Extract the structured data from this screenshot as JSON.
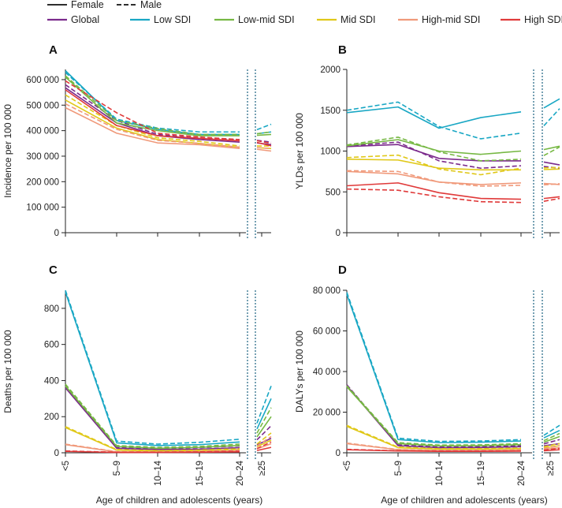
{
  "legend": {
    "sex": [
      {
        "label": "Female",
        "dash": "solid"
      },
      {
        "label": "Male",
        "dash": "dashed"
      }
    ],
    "groups": [
      {
        "key": "global",
        "label": "Global",
        "color": "#7b2a8c"
      },
      {
        "key": "low",
        "label": "Low SDI",
        "color": "#19a7c4"
      },
      {
        "key": "lowmid",
        "label": "Low-mid SDI",
        "color": "#76b843"
      },
      {
        "key": "mid",
        "label": "Mid SDI",
        "color": "#e0c818"
      },
      {
        "key": "highmid",
        "label": "High-mid SDI",
        "color": "#f0997a"
      },
      {
        "key": "high",
        "label": "High SDI",
        "color": "#e03a3a"
      }
    ]
  },
  "axes": {
    "x_title": "Age of children and adolescents (years)",
    "x_ticks": [
      "<5",
      "5–9",
      "10–14",
      "15–19",
      "20–24"
    ],
    "x_tick_extra": "≥25"
  },
  "chart_data": [
    {
      "panel": "A",
      "type": "line",
      "ylabel": "Incidence per 100 000",
      "ylim": [
        0,
        640000
      ],
      "yticks": [
        0,
        100000,
        200000,
        300000,
        400000,
        500000,
        600000
      ],
      "ytick_labels": [
        "0",
        "100 000",
        "200 000",
        "300 000",
        "400 000",
        "500 000",
        "600 000"
      ],
      "categories": [
        "<5",
        "5–9",
        "10–14",
        "15–19",
        "20–24",
        "≥25"
      ],
      "series": [
        {
          "group": "global",
          "sex": "Female",
          "values": [
            568000,
            430000,
            380000,
            365000,
            355000,
            345000
          ]
        },
        {
          "group": "global",
          "sex": "Male",
          "values": [
            580000,
            440000,
            385000,
            370000,
            365000,
            355000
          ]
        },
        {
          "group": "low",
          "sex": "Female",
          "values": [
            635000,
            440000,
            405000,
            385000,
            385000,
            395000
          ]
        },
        {
          "group": "low",
          "sex": "Male",
          "values": [
            628000,
            445000,
            410000,
            395000,
            395000,
            425000
          ]
        },
        {
          "group": "lowmid",
          "sex": "Female",
          "values": [
            610000,
            430000,
            400000,
            380000,
            380000,
            385000
          ]
        },
        {
          "group": "lowmid",
          "sex": "Male",
          "values": [
            615000,
            440000,
            408000,
            385000,
            385000,
            395000
          ]
        },
        {
          "group": "mid",
          "sex": "Female",
          "values": [
            520000,
            410000,
            365000,
            350000,
            335000,
            330000
          ]
        },
        {
          "group": "mid",
          "sex": "Male",
          "values": [
            540000,
            420000,
            372000,
            358000,
            340000,
            340000
          ]
        },
        {
          "group": "highmid",
          "sex": "Female",
          "values": [
            490000,
            390000,
            352000,
            345000,
            330000,
            320000
          ]
        },
        {
          "group": "highmid",
          "sex": "Male",
          "values": [
            505000,
            405000,
            362000,
            350000,
            335000,
            330000
          ]
        },
        {
          "group": "high",
          "sex": "Female",
          "values": [
            560000,
            420000,
            380000,
            370000,
            360000,
            340000
          ]
        },
        {
          "group": "high",
          "sex": "Male",
          "values": [
            595000,
            470000,
            390000,
            375000,
            365000,
            350000
          ]
        }
      ]
    },
    {
      "panel": "B",
      "type": "line",
      "ylabel": "YLDs per 100 000",
      "ylim": [
        0,
        2000
      ],
      "yticks": [
        0,
        500,
        1000,
        1500,
        2000
      ],
      "ytick_labels": [
        "0",
        "500",
        "1000",
        "1500",
        "2000"
      ],
      "categories": [
        "<5",
        "5–9",
        "10–14",
        "15–19",
        "20–24",
        "≥25"
      ],
      "series": [
        {
          "group": "global",
          "sex": "Female",
          "values": [
            1055,
            1080,
            910,
            880,
            880,
            830
          ]
        },
        {
          "group": "global",
          "sex": "Male",
          "values": [
            1060,
            1110,
            880,
            790,
            820,
            790
          ]
        },
        {
          "group": "low",
          "sex": "Female",
          "values": [
            1470,
            1540,
            1280,
            1410,
            1480,
            1640
          ]
        },
        {
          "group": "low",
          "sex": "Male",
          "values": [
            1500,
            1600,
            1300,
            1150,
            1220,
            1520
          ]
        },
        {
          "group": "lowmid",
          "sex": "Female",
          "values": [
            1065,
            1140,
            1000,
            960,
            1000,
            1060
          ]
        },
        {
          "group": "lowmid",
          "sex": "Male",
          "values": [
            1075,
            1170,
            990,
            880,
            900,
            1050
          ]
        },
        {
          "group": "mid",
          "sex": "Female",
          "values": [
            900,
            890,
            790,
            770,
            770,
            780
          ]
        },
        {
          "group": "mid",
          "sex": "Male",
          "values": [
            920,
            950,
            780,
            710,
            790,
            800
          ]
        },
        {
          "group": "highmid",
          "sex": "Female",
          "values": [
            750,
            720,
            620,
            590,
            610,
            590
          ]
        },
        {
          "group": "highmid",
          "sex": "Male",
          "values": [
            760,
            750,
            620,
            570,
            580,
            600
          ]
        },
        {
          "group": "high",
          "sex": "Female",
          "values": [
            575,
            610,
            490,
            420,
            410,
            440
          ]
        },
        {
          "group": "high",
          "sex": "Male",
          "values": [
            535,
            520,
            440,
            380,
            370,
            420
          ]
        }
      ]
    },
    {
      "panel": "C",
      "type": "line",
      "ylabel": "Deaths per 100 000",
      "ylim": [
        0,
        900
      ],
      "yticks": [
        0,
        200,
        400,
        600,
        800
      ],
      "ytick_labels": [
        "0",
        "200",
        "400",
        "600",
        "800"
      ],
      "categories": [
        "<5",
        "5–9",
        "10–14",
        "15–19",
        "20–24",
        "≥25"
      ],
      "series": [
        {
          "group": "global",
          "sex": "Female",
          "values": [
            360,
            25,
            18,
            20,
            28,
            80
          ]
        },
        {
          "group": "global",
          "sex": "Male",
          "values": [
            370,
            30,
            22,
            28,
            38,
            150
          ]
        },
        {
          "group": "low",
          "sex": "Female",
          "values": [
            890,
            55,
            40,
            45,
            60,
            300
          ]
        },
        {
          "group": "low",
          "sex": "Male",
          "values": [
            900,
            65,
            48,
            58,
            75,
            370
          ]
        },
        {
          "group": "lowmid",
          "sex": "Female",
          "values": [
            370,
            35,
            25,
            30,
            40,
            200
          ]
        },
        {
          "group": "lowmid",
          "sex": "Male",
          "values": [
            380,
            40,
            30,
            35,
            48,
            250
          ]
        },
        {
          "group": "mid",
          "sex": "Female",
          "values": [
            140,
            15,
            10,
            12,
            18,
            70
          ]
        },
        {
          "group": "mid",
          "sex": "Male",
          "values": [
            145,
            18,
            12,
            15,
            22,
            110
          ]
        },
        {
          "group": "highmid",
          "sex": "Female",
          "values": [
            45,
            5,
            4,
            6,
            10,
            50
          ]
        },
        {
          "group": "highmid",
          "sex": "Male",
          "values": [
            48,
            6,
            5,
            8,
            15,
            90
          ]
        },
        {
          "group": "high",
          "sex": "Female",
          "values": [
            8,
            2,
            2,
            3,
            5,
            30
          ]
        },
        {
          "group": "high",
          "sex": "Male",
          "values": [
            10,
            3,
            3,
            5,
            8,
            60
          ]
        }
      ]
    },
    {
      "panel": "D",
      "type": "line",
      "ylabel": "DALYs per 100 000",
      "ylim": [
        0,
        80000
      ],
      "yticks": [
        0,
        20000,
        40000,
        60000,
        80000
      ],
      "ytick_labels": [
        "0",
        "20 000",
        "40 000",
        "60 000",
        "80 000"
      ],
      "categories": [
        "<5",
        "5–9",
        "10–14",
        "15–19",
        "20–24",
        "≥25"
      ],
      "series": [
        {
          "group": "global",
          "sex": "Female",
          "values": [
            33000,
            3500,
            2500,
            2600,
            3000,
            4500
          ]
        },
        {
          "group": "global",
          "sex": "Male",
          "values": [
            33500,
            3900,
            2800,
            3000,
            3500,
            6500
          ]
        },
        {
          "group": "low",
          "sex": "Female",
          "values": [
            78000,
            6500,
            5000,
            5200,
            5800,
            11000
          ]
        },
        {
          "group": "low",
          "sex": "Male",
          "values": [
            79000,
            7200,
            5600,
            5800,
            6500,
            13500
          ]
        },
        {
          "group": "lowmid",
          "sex": "Female",
          "values": [
            32500,
            4500,
            3400,
            3500,
            4000,
            8000
          ]
        },
        {
          "group": "lowmid",
          "sex": "Male",
          "values": [
            33000,
            5000,
            3800,
            3900,
            4500,
            9500
          ]
        },
        {
          "group": "mid",
          "sex": "Female",
          "values": [
            13000,
            2500,
            1800,
            1800,
            2000,
            3500
          ]
        },
        {
          "group": "mid",
          "sex": "Male",
          "values": [
            13500,
            2800,
            2000,
            2000,
            2300,
            4500
          ]
        },
        {
          "group": "highmid",
          "sex": "Female",
          "values": [
            4500,
            1500,
            1100,
            1100,
            1300,
            2500
          ]
        },
        {
          "group": "highmid",
          "sex": "Male",
          "values": [
            4800,
            1600,
            1200,
            1200,
            1500,
            3500
          ]
        },
        {
          "group": "high",
          "sex": "Female",
          "values": [
            1500,
            900,
            700,
            700,
            800,
            1500
          ]
        },
        {
          "group": "high",
          "sex": "Male",
          "values": [
            1700,
            1000,
            800,
            800,
            900,
            2200
          ]
        }
      ]
    }
  ]
}
